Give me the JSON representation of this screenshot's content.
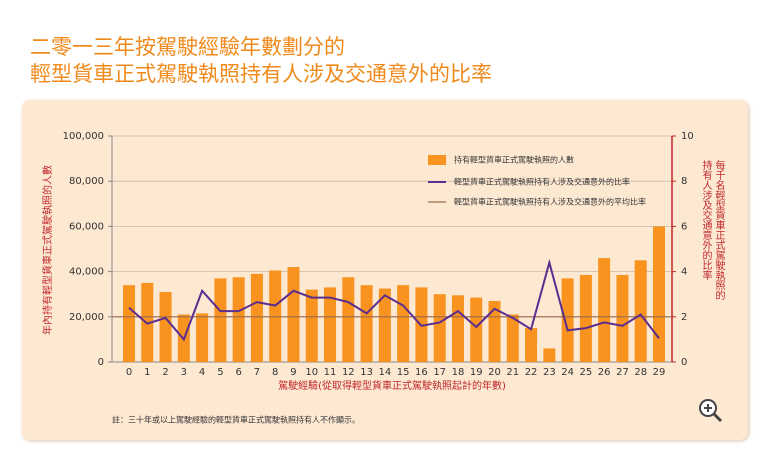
{
  "chart_data": {
    "type": "bar",
    "title": [
      "二零一三年按駕駛經驗年數劃分的",
      "輕型貨車正式駕駛執照持有人涉及交通意外的比率"
    ],
    "x_label": "駕駛經驗(從取得輕型貨車正式駕駛執照起計的年數)",
    "y_label": "年內持有輕型貨車正式駕駛執照的人數",
    "y2_label": [
      "每千名輕型貨車正式駕駛執照的",
      "持有人涉及交通意外的比率"
    ],
    "note": "註：三十年或以上駕駛經驗的輕型貨車正式駕駛執照持有人不作顯示。",
    "x": [
      0,
      1,
      2,
      3,
      4,
      5,
      6,
      7,
      8,
      9,
      10,
      11,
      12,
      13,
      14,
      15,
      16,
      17,
      18,
      19,
      20,
      21,
      22,
      23,
      24,
      25,
      26,
      27,
      28,
      29
    ],
    "ylim": [
      0,
      100000
    ],
    "yticks": [
      0,
      {
        "value": 20000,
        "label": "20,000"
      },
      {
        "value": 40000,
        "label": "40,000"
      },
      {
        "value": 60000,
        "label": "60,000"
      },
      {
        "value": 80000,
        "label": "80,000"
      },
      {
        "value": 100000,
        "label": "100,000"
      }
    ],
    "y2lim": [
      0,
      10
    ],
    "y2ticks": [
      0,
      2,
      4,
      6,
      8,
      10
    ],
    "grid": true,
    "series": [
      {
        "name": "持有輕型貨車正式駕駛執照的人數",
        "type": "bar",
        "color": "#f7931e",
        "values": [
          34000,
          35000,
          31000,
          21000,
          21500,
          37000,
          37500,
          39000,
          40500,
          42000,
          32000,
          33000,
          37500,
          34000,
          32500,
          34000,
          33000,
          30000,
          29500,
          28500,
          27000,
          21000,
          15000,
          6000,
          37000,
          38500,
          46000,
          38500,
          45000,
          60000
        ]
      },
      {
        "name": "輕型貨車正式駕駛執照持有人涉及交通意外的比率",
        "type": "line",
        "axis": "y2",
        "color": "#5b2d8e",
        "values": [
          2.4,
          1.7,
          1.95,
          1.0,
          3.15,
          2.25,
          2.25,
          2.65,
          2.5,
          3.15,
          2.85,
          2.85,
          2.65,
          2.15,
          2.95,
          2.5,
          1.6,
          1.75,
          2.25,
          1.55,
          2.35,
          1.95,
          1.45,
          4.4,
          1.4,
          1.5,
          1.75,
          1.6,
          2.1,
          1.05
        ]
      }
    ],
    "reference_line": {
      "name": "輕型貨車正式駕駛執照持有人涉及交通意外的平均比率",
      "axis": "y2",
      "color": "#9b6b4e",
      "value": 2
    }
  }
}
